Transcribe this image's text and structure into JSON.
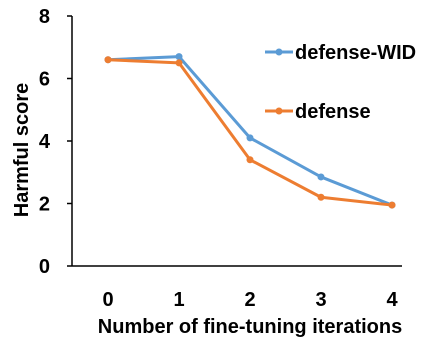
{
  "chart_data": {
    "type": "line",
    "title": "",
    "xlabel": "Number of fine-tuning iterations",
    "ylabel": "Harmful score",
    "x": [
      0,
      1,
      2,
      3,
      4
    ],
    "x_tick_labels": [
      "0",
      "1",
      "2",
      "3",
      "4"
    ],
    "y_tick_labels": [
      "0",
      "2",
      "4",
      "6",
      "8"
    ],
    "xlim": [
      0,
      4
    ],
    "ylim": [
      0,
      8
    ],
    "grid": false,
    "legend_position": "right",
    "series": [
      {
        "name": "defense-WID",
        "color": "#5B9BD5",
        "values": [
          6.6,
          6.7,
          4.1,
          2.85,
          1.95
        ]
      },
      {
        "name": "defense",
        "color": "#ED7D31",
        "values": [
          6.6,
          6.5,
          3.4,
          2.2,
          1.95
        ]
      }
    ]
  }
}
